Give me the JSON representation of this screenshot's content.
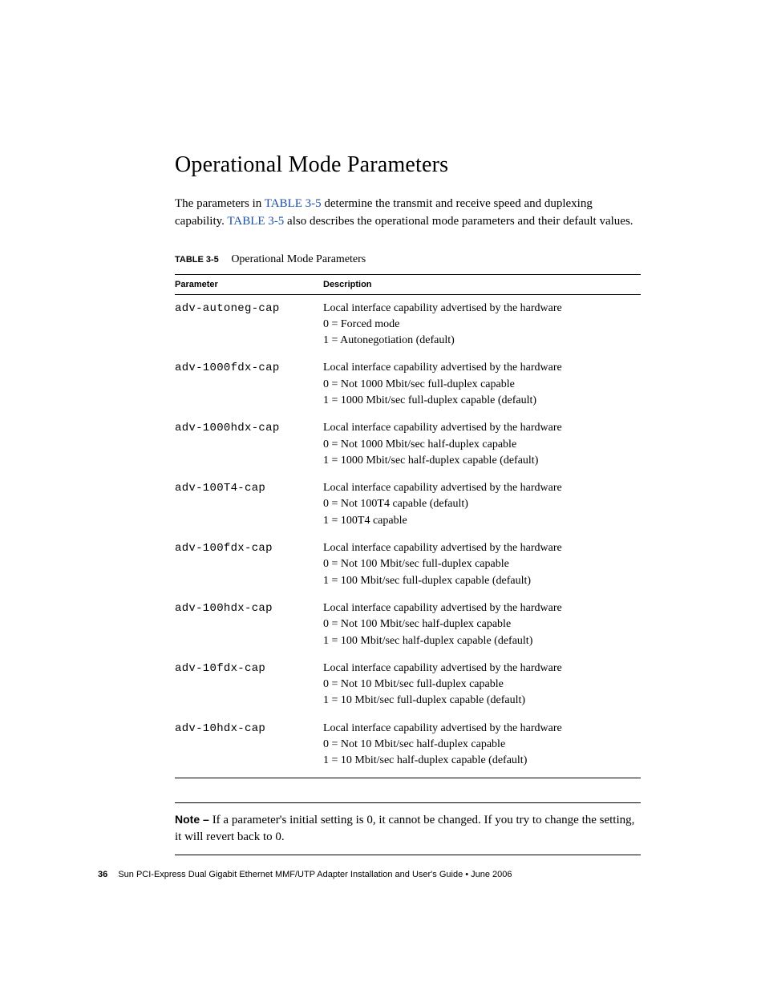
{
  "heading": "Operational Mode Parameters",
  "intro_parts": {
    "p1a": "The parameters in ",
    "ref1": "TABLE 3-5",
    "p1b": " determine the transmit and receive speed and duplexing capability. ",
    "ref2": "TABLE 3-5",
    "p1c": " also describes the operational mode parameters and their default values."
  },
  "table": {
    "label": "TABLE 3-5",
    "caption": "Operational Mode Parameters",
    "columns": {
      "param": "Parameter",
      "desc": "Description"
    },
    "rows": [
      {
        "param": "adv-autoneg-cap",
        "lines": [
          "Local interface capability advertised by the hardware",
          "0 = Forced mode",
          "1 = Autonegotiation (default)"
        ]
      },
      {
        "param": "adv-1000fdx-cap",
        "lines": [
          "Local interface capability advertised by the hardware",
          "0 = Not 1000 Mbit/sec full-duplex capable",
          "1 = 1000 Mbit/sec full-duplex capable (default)"
        ]
      },
      {
        "param": "adv-1000hdx-cap",
        "lines": [
          "Local interface capability advertised by the hardware",
          "0 = Not 1000 Mbit/sec half-duplex capable",
          "1 = 1000 Mbit/sec half-duplex capable (default)"
        ]
      },
      {
        "param": "adv-100T4-cap",
        "lines": [
          "Local interface capability advertised by the hardware",
          "0 = Not 100T4 capable (default)",
          "1 = 100T4 capable"
        ]
      },
      {
        "param": "adv-100fdx-cap",
        "lines": [
          "Local interface capability advertised by the hardware",
          "0 = Not 100 Mbit/sec full-duplex capable",
          "1 = 100 Mbit/sec full-duplex capable (default)"
        ]
      },
      {
        "param": "adv-100hdx-cap",
        "lines": [
          "Local interface capability advertised by the hardware",
          "0 = Not 100 Mbit/sec half-duplex capable",
          "1 = 100 Mbit/sec half-duplex capable (default)"
        ]
      },
      {
        "param": "adv-10fdx-cap",
        "lines": [
          "Local interface capability advertised by the hardware",
          "0 = Not 10 Mbit/sec full-duplex capable",
          "1 = 10 Mbit/sec full-duplex capable (default)"
        ]
      },
      {
        "param": "adv-10hdx-cap",
        "lines": [
          "Local interface capability advertised by the hardware",
          "0 = Not 10 Mbit/sec half-duplex capable",
          "1 = 10 Mbit/sec half-duplex capable (default)"
        ]
      }
    ]
  },
  "note": {
    "label": "Note – ",
    "text": "If a parameter's initial setting is 0, it cannot be changed. If you try to change the setting, it will revert back to 0."
  },
  "footer": {
    "page_number": "36",
    "text": "Sun PCI-Express Dual Gigabit Ethernet MMF/UTP Adapter Installation and User's Guide  •  June 2006"
  },
  "colors": {
    "text": "#000000",
    "link": "#1b4fa3",
    "background": "#ffffff"
  }
}
